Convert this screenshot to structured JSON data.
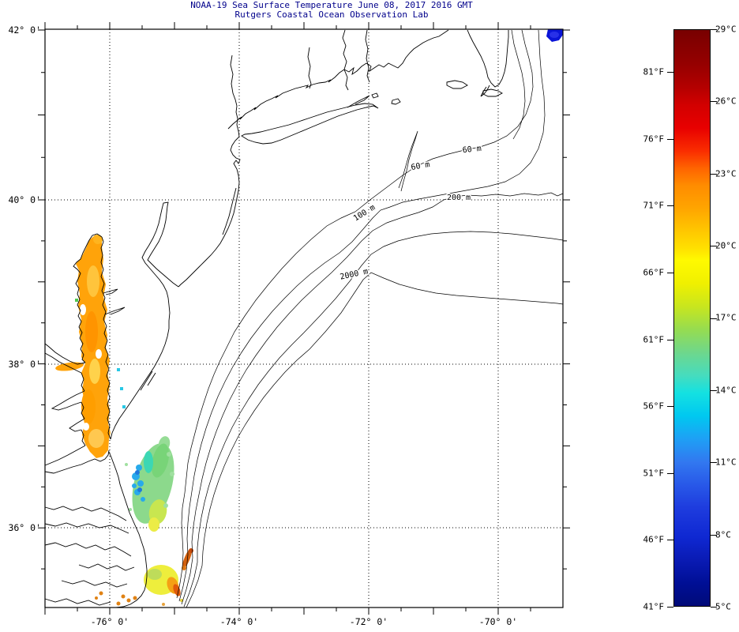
{
  "header": {
    "title": "NOAA-19 Sea Surface Temperature June 08, 2017 2016 GMT",
    "subtitle": "Rutgers Coastal Ocean Observation Lab",
    "title_color": "#00008B"
  },
  "map_axes": {
    "lat_labels": [
      "42° 0'",
      "40° 0'",
      "38° 0'",
      "36° 0'"
    ],
    "lon_labels": [
      "-76° 0'",
      "-74° 0'",
      "-72° 0'",
      "-70° 0'"
    ]
  },
  "bathymetry_labels": {
    "b60a": "60 m",
    "b60b": "60 m",
    "b100": "100 m",
    "b200": "200 m",
    "b2000": "2000 m"
  },
  "colorbar": {
    "fahrenheit_labels": [
      "81°F",
      "76°F",
      "71°F",
      "66°F",
      "61°F",
      "56°F",
      "51°F",
      "46°F",
      "41°F"
    ],
    "celsius_labels": [
      "29°C",
      "26°C",
      "23°C",
      "20°C",
      "17°C",
      "14°C",
      "11°C",
      "8°C",
      "5°C"
    ],
    "min_c": 5,
    "max_c": 29,
    "min_f": 41,
    "max_f": 81
  },
  "chart_data": {
    "type": "heatmap",
    "title": "NOAA-19 Sea Surface Temperature June 08, 2017 2016 GMT",
    "subtitle": "Rutgers Coastal Ocean Observation Lab",
    "extent": {
      "lon": [
        -77,
        -69
      ],
      "lat": [
        35,
        42
      ]
    },
    "lat_ticks": [
      42,
      40,
      38,
      36
    ],
    "lon_ticks": [
      -76,
      -74,
      -72,
      -70
    ],
    "grid": "dotted at labeled ticks",
    "colorbar_scale_c": [
      29,
      26,
      23,
      20,
      17,
      14,
      11,
      8,
      5
    ],
    "colorbar_scale_f": [
      81,
      76,
      71,
      66,
      61,
      56,
      51,
      46,
      41
    ],
    "depth_contours_m": [
      60,
      100,
      200,
      2000
    ],
    "sst_observations": [
      {
        "area": "Chesapeake Bay and lower Potomac",
        "approx_temp_c": "20-23",
        "color": "orange"
      },
      {
        "area": "shelf water off southern Delmarva / Virginia coast",
        "approx_temp_c": "12-18",
        "color": "green, cyan and blue patch"
      },
      {
        "area": "off Outer Banks near Cape Hatteras",
        "approx_temp_c": "19-25",
        "color": "yellow core with orange-red fringe"
      },
      {
        "area": "northeast corner of map",
        "approx_temp_c": "6-8",
        "color": "dark blue"
      }
    ]
  }
}
